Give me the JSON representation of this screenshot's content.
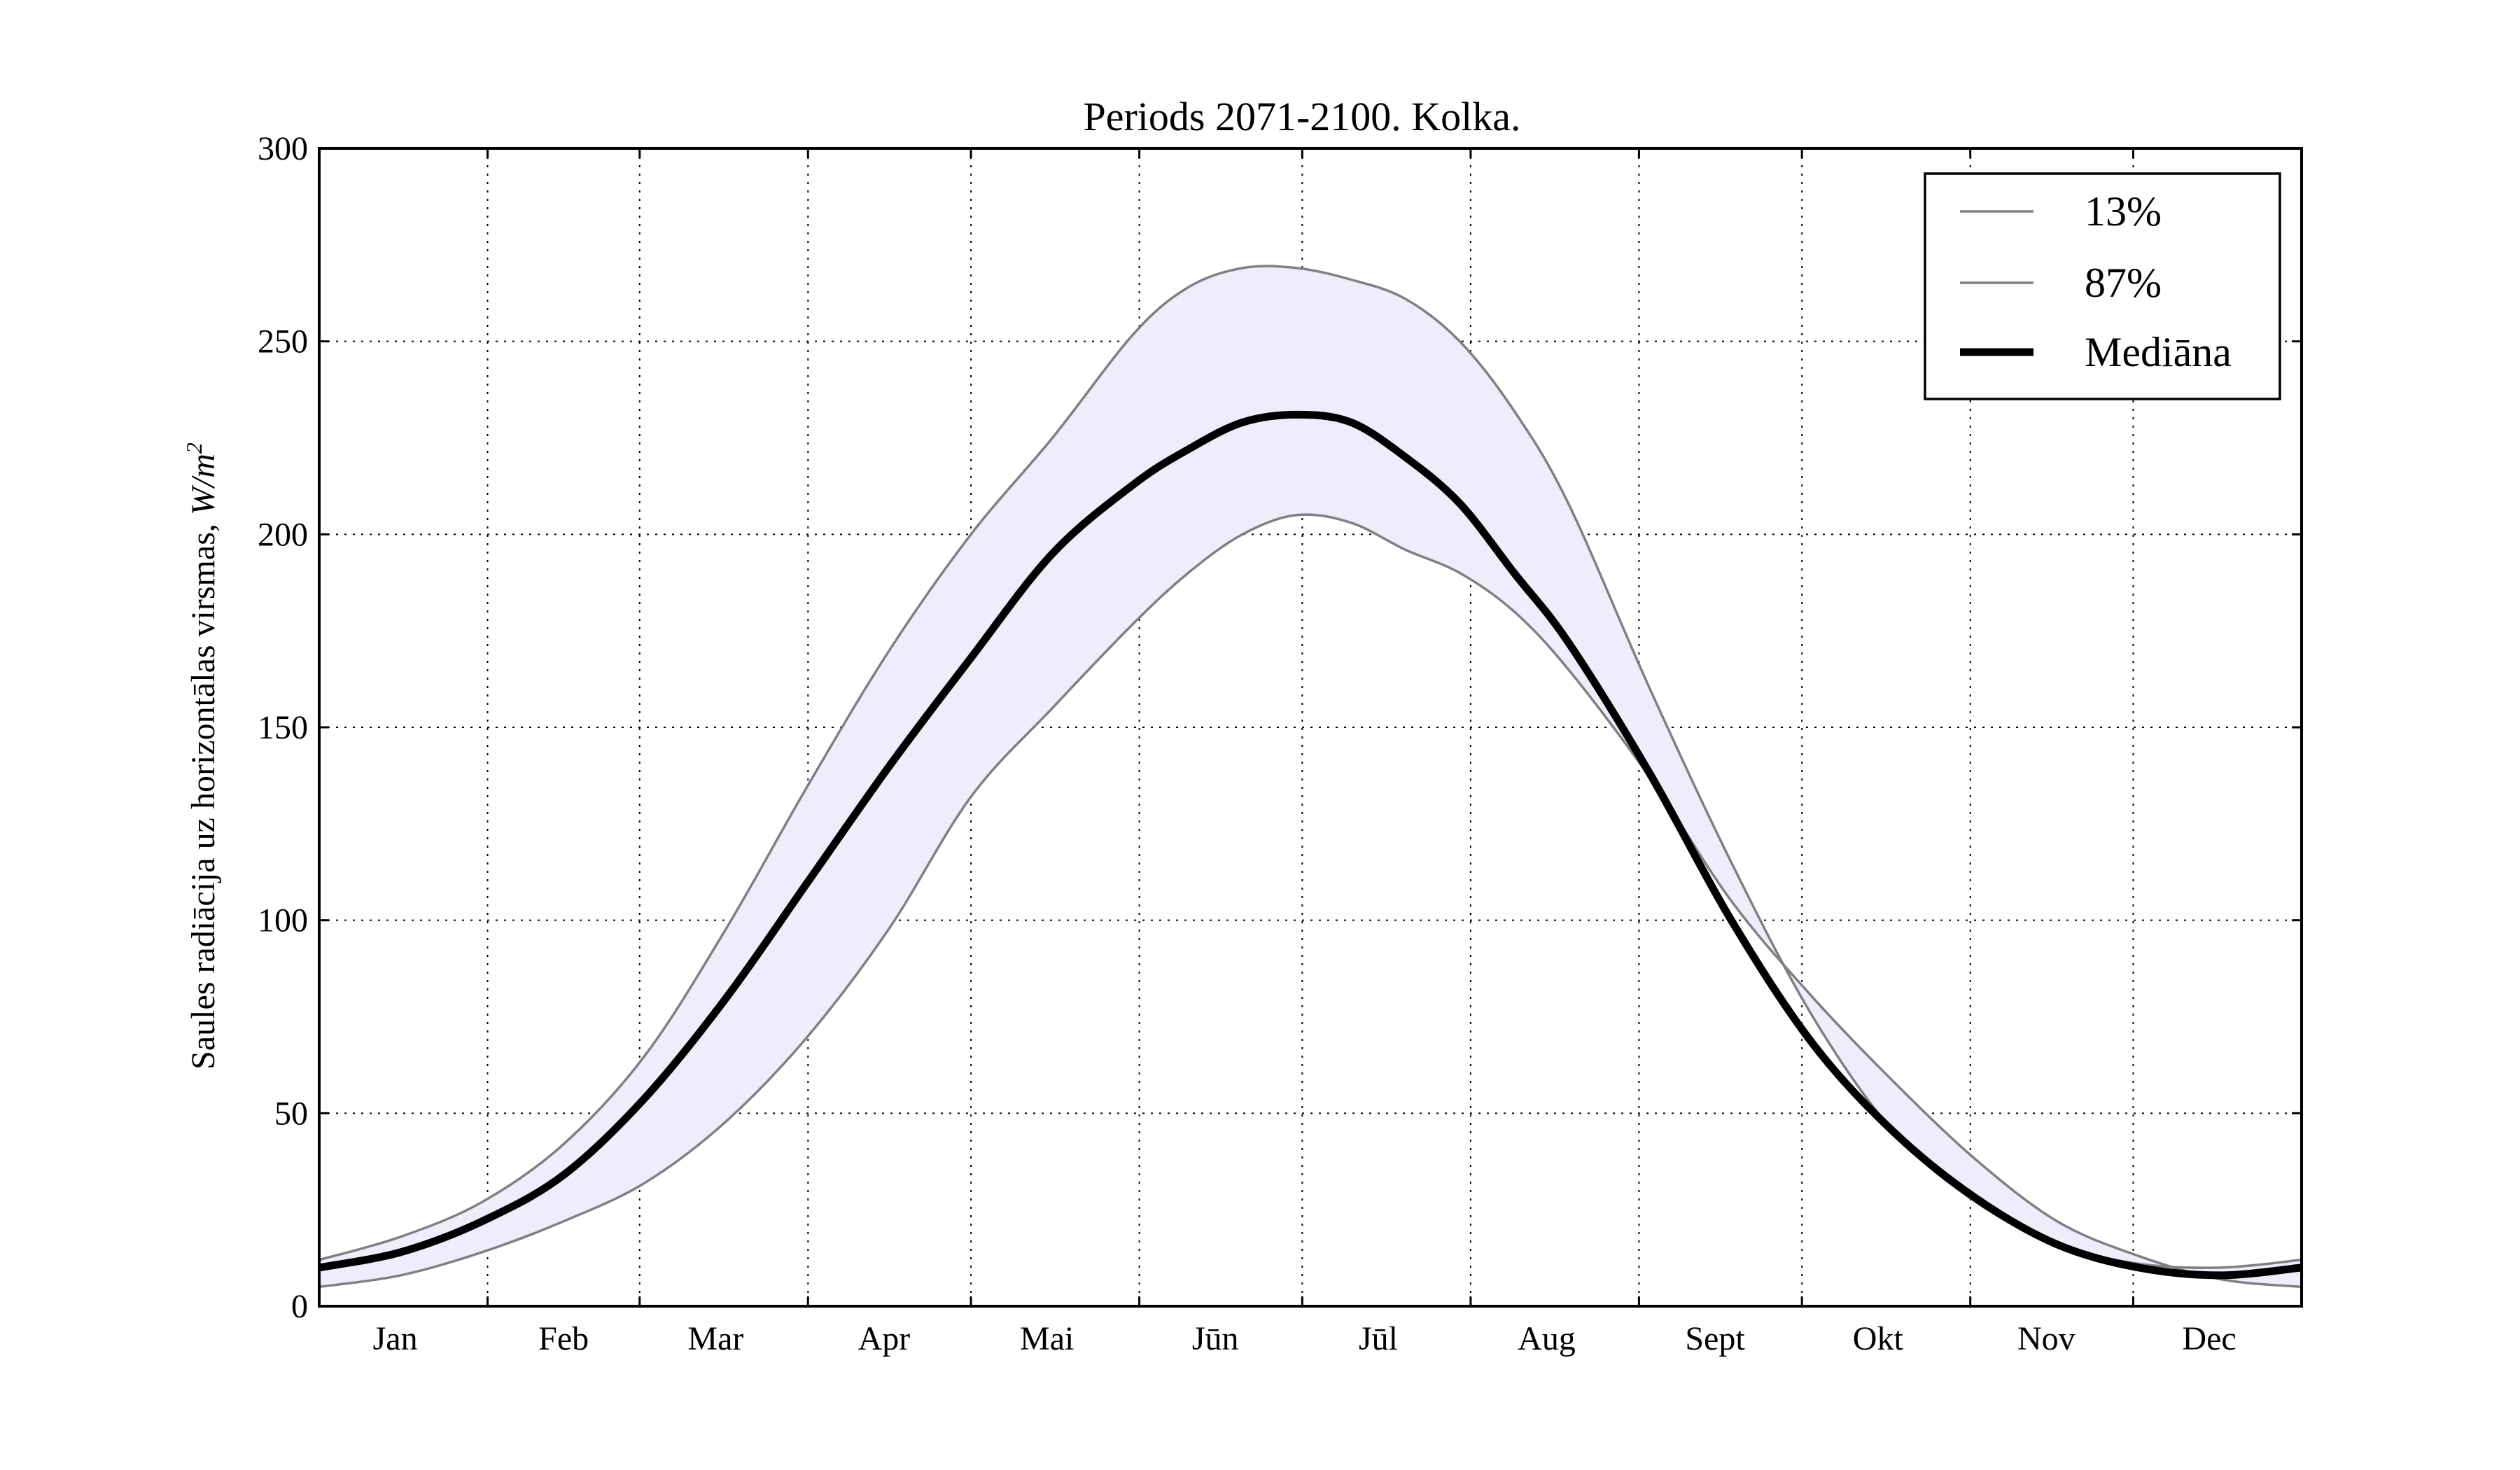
{
  "chart_data": {
    "type": "line",
    "title": "Periods 2071-2100. Kolka.",
    "ylabel_text": "Saules radiācija uz horizontālas virsmas, ",
    "ylabel_unit": "W/m",
    "ylabel_exp": "2",
    "xlabel": "",
    "ylim": [
      0,
      300
    ],
    "yticks": [
      0,
      50,
      100,
      150,
      200,
      250,
      300
    ],
    "xlim": [
      0,
      365
    ],
    "month_boundaries": [
      31,
      59,
      90,
      120,
      151,
      181,
      212,
      243,
      273,
      304,
      334
    ],
    "month_labels": [
      "Jan",
      "Feb",
      "Mar",
      "Apr",
      "Mai",
      "Jūn",
      "Jūl",
      "Aug",
      "Sept",
      "Okt",
      "Nov",
      "Dec"
    ],
    "month_label_days": [
      14,
      45,
      73,
      104,
      134,
      165,
      195,
      226,
      257,
      287,
      318,
      348
    ],
    "grid": true,
    "legend_position": "top-right",
    "colors": {
      "band_fill": "#ededfc",
      "bound_line": "#808080",
      "median_line": "#000000"
    },
    "series": [
      {
        "name": "13%",
        "style": "bound",
        "x": [
          0,
          15,
          30,
          45,
          60,
          75,
          90,
          105,
          120,
          135,
          150,
          160,
          170,
          180,
          190,
          200,
          210,
          220,
          230,
          245,
          260,
          275,
          290,
          305,
          320,
          335,
          350,
          365
        ],
        "y": [
          5,
          8,
          14,
          22,
          32,
          48,
          70,
          98,
          132,
          155,
          177,
          190,
          200,
          205,
          203,
          196,
          190,
          180,
          165,
          137,
          105,
          80,
          58,
          38,
          22,
          13,
          7,
          5
        ]
      },
      {
        "name": "87%",
        "style": "bound",
        "x": [
          0,
          15,
          30,
          45,
          60,
          75,
          90,
          105,
          120,
          135,
          150,
          160,
          170,
          180,
          190,
          200,
          210,
          220,
          230,
          245,
          260,
          275,
          290,
          305,
          320,
          335,
          350,
          365
        ],
        "y": [
          12,
          18,
          27,
          42,
          65,
          98,
          135,
          170,
          200,
          225,
          252,
          264,
          269,
          269,
          266,
          261,
          250,
          232,
          208,
          160,
          115,
          75,
          45,
          27,
          16,
          11,
          10,
          12
        ]
      },
      {
        "name": "Mediāna",
        "style": "median",
        "x": [
          0,
          15,
          30,
          45,
          60,
          75,
          90,
          105,
          120,
          135,
          150,
          160,
          170,
          180,
          190,
          200,
          210,
          220,
          230,
          245,
          260,
          275,
          290,
          305,
          320,
          335,
          350,
          365
        ],
        "y": [
          10,
          14,
          22,
          34,
          54,
          80,
          110,
          140,
          168,
          195,
          213,
          222,
          229,
          231,
          229,
          220,
          208,
          190,
          172,
          138,
          100,
          68,
          45,
          28,
          16,
          10,
          8,
          10
        ]
      }
    ]
  }
}
